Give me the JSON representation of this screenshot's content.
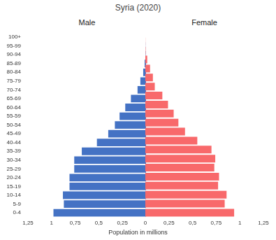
{
  "chart_data": {
    "type": "bar",
    "orientation": "horizontal",
    "title": "Syria (2020)",
    "x_label": "Population in millions",
    "categories": [
      "0-4",
      "5-9",
      "10-14",
      "15-19",
      "20-24",
      "25-29",
      "30-34",
      "35-39",
      "40-44",
      "45-49",
      "50-54",
      "55-59",
      "60-64",
      "65-69",
      "70-74",
      "75-79",
      "80-84",
      "85-89",
      "90-94",
      "95-99",
      "100+"
    ],
    "series": [
      {
        "name": "Male",
        "color": "#4472c4",
        "values": [
          0.98,
          0.87,
          0.88,
          0.81,
          0.81,
          0.76,
          0.76,
          0.68,
          0.52,
          0.4,
          0.33,
          0.28,
          0.22,
          0.16,
          0.09,
          0.06,
          0.03,
          0.015,
          0.003,
          0.001,
          0
        ]
      },
      {
        "name": "Female",
        "color": "#f8696b",
        "values": [
          0.94,
          0.84,
          0.86,
          0.77,
          0.78,
          0.73,
          0.74,
          0.7,
          0.55,
          0.42,
          0.35,
          0.3,
          0.24,
          0.18,
          0.1,
          0.08,
          0.05,
          0.02,
          0.003,
          0.001,
          0
        ]
      }
    ],
    "xlim": [
      0,
      1.25
    ],
    "xticks": [
      0,
      {
        "value": 0.25,
        "label": "0,25"
      },
      {
        "value": 0.5,
        "label": "0,5"
      },
      {
        "value": 0.75,
        "label": "0,75"
      },
      1,
      {
        "value": 1.25,
        "label": "1,25"
      }
    ],
    "grid": false
  }
}
